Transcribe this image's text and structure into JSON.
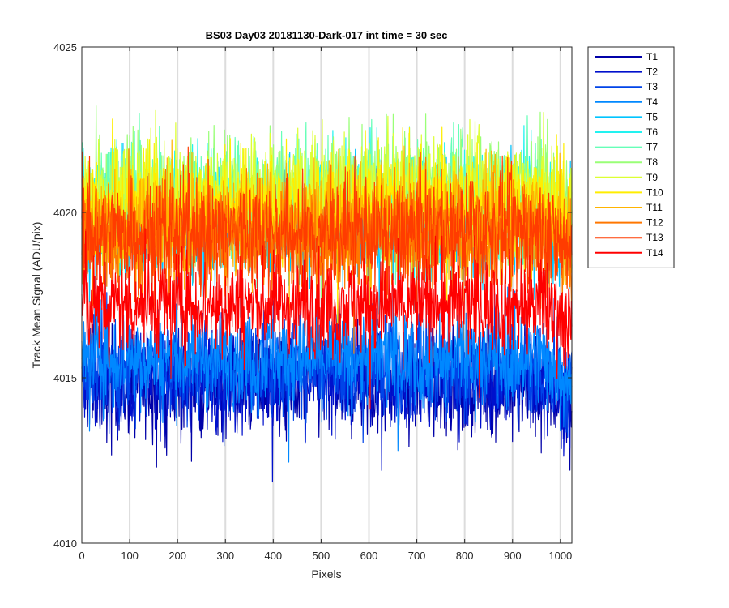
{
  "chart_data": {
    "type": "line",
    "title": "BS03 Day03 20181130-Dark-017 int time = 30 sec",
    "xlabel": "Pixels",
    "ylabel": "Track Mean Signal (ADU/pix)",
    "xlim": [
      0,
      1024
    ],
    "ylim": [
      4010,
      4025
    ],
    "xticks": [
      0,
      100,
      200,
      300,
      400,
      500,
      600,
      700,
      800,
      900,
      1000
    ],
    "yticks": [
      4010,
      4015,
      4020,
      4025
    ],
    "x_grid": true,
    "y_grid": false,
    "legend_position": "outside-right-top",
    "n_points": 1024,
    "series": [
      {
        "name": "T1",
        "color": "#0000A8",
        "mean": 4014.8,
        "noise": 0.8
      },
      {
        "name": "T2",
        "color": "#0010CC",
        "mean": 4015.0,
        "noise": 0.75
      },
      {
        "name": "T3",
        "color": "#0044E8",
        "mean": 4015.3,
        "noise": 0.75
      },
      {
        "name": "T4",
        "color": "#0088FF",
        "mean": 4015.6,
        "noise": 0.75
      },
      {
        "name": "T5",
        "color": "#00C4FF",
        "mean": 4019.5,
        "noise": 0.85
      },
      {
        "name": "T6",
        "color": "#22F2F0",
        "mean": 4020.2,
        "noise": 0.85
      },
      {
        "name": "T7",
        "color": "#66FFB8",
        "mean": 4020.4,
        "noise": 0.85
      },
      {
        "name": "T8",
        "color": "#99FF77",
        "mean": 4020.6,
        "noise": 0.85
      },
      {
        "name": "T9",
        "color": "#DDFF33",
        "mean": 4020.5,
        "noise": 0.85
      },
      {
        "name": "T10",
        "color": "#FFEE00",
        "mean": 4020.2,
        "noise": 0.85
      },
      {
        "name": "T11",
        "color": "#FFB400",
        "mean": 4019.6,
        "noise": 0.85
      },
      {
        "name": "T12",
        "color": "#FF7700",
        "mean": 4019.3,
        "noise": 0.85
      },
      {
        "name": "T13",
        "color": "#FF3C00",
        "mean": 4019.4,
        "noise": 0.85
      },
      {
        "name": "T14",
        "color": "#FF0000",
        "mean": 4017.2,
        "noise": 0.75
      }
    ]
  }
}
